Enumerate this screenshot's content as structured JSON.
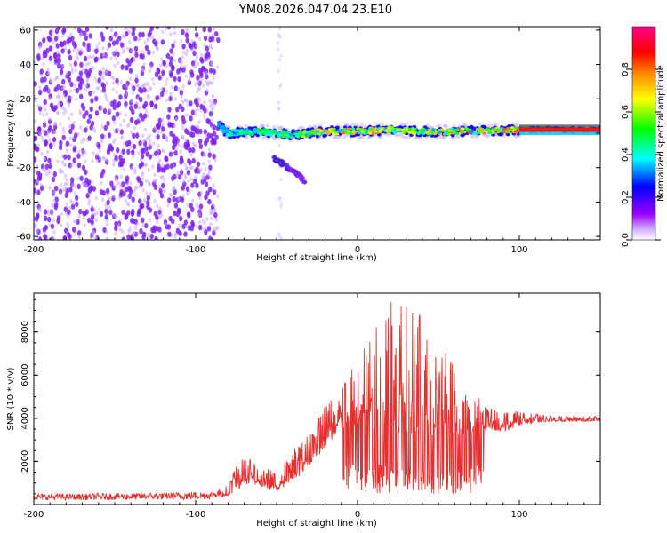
{
  "title": "YM08.2026.047.04.23.E10",
  "colors": {
    "snr_line": "#e53030",
    "spec_floor": "#7722ee"
  },
  "chart_data": [
    {
      "type": "heatmap",
      "name": "spectrogram",
      "xlabel": "Height of straight line (km)",
      "ylabel": "Frequency (Hz)",
      "xlim": [
        -200,
        150
      ],
      "ylim": [
        -62,
        62
      ],
      "xticks": [
        -200,
        -100,
        0,
        100
      ],
      "yticks": [
        60,
        40,
        20,
        0,
        -20,
        -40,
        -60
      ],
      "colorbar": {
        "label": "Normalized spectral amplitude",
        "range": [
          0,
          1
        ],
        "ticks": [
          0.0,
          0.2,
          0.4,
          0.6,
          0.8
        ],
        "tick_labels": [
          "0.0",
          "0.2",
          "0.4",
          "0.6",
          "0.8"
        ],
        "colormap": [
          "#ffffff",
          "#9b00ff",
          "#0000ff",
          "#00ffff",
          "#00ff00",
          "#ffff00",
          "#ff8800",
          "#ff0000",
          "#ff0088"
        ]
      },
      "features": {
        "noise_region_km": [
          -200,
          -86
        ],
        "noise_amplitude_max": 0.25,
        "signal_band": [
          {
            "x": -86,
            "f": 5,
            "a": 0.3
          },
          {
            "x": -80,
            "f": 0,
            "a": 0.45
          },
          {
            "x": -60,
            "f": 1,
            "a": 0.55
          },
          {
            "x": -40,
            "f": -1,
            "a": 0.6
          },
          {
            "x": -20,
            "f": 1,
            "a": 0.8
          },
          {
            "x": 0,
            "f": 1,
            "a": 0.85
          },
          {
            "x": 20,
            "f": 2,
            "a": 0.75
          },
          {
            "x": 40,
            "f": 1,
            "a": 0.7
          },
          {
            "x": 60,
            "f": 1,
            "a": 0.8
          },
          {
            "x": 100,
            "f": 2,
            "a": 0.95
          },
          {
            "x": 150,
            "f": 2,
            "a": 1.0
          }
        ],
        "secondary_branch": [
          {
            "x": -52,
            "f": -14
          },
          {
            "x": -40,
            "f": -22
          },
          {
            "x": -32,
            "f": -28
          }
        ]
      }
    },
    {
      "type": "line",
      "name": "snr",
      "xlabel": "Height of straight line (km)",
      "ylabel": "SNR (10 * v/v)",
      "xlim": [
        -200,
        150
      ],
      "ylim": [
        0,
        9800
      ],
      "xticks": [
        -200,
        -100,
        0,
        100
      ],
      "yticks": [
        2000,
        4000,
        6000,
        8000
      ],
      "series": [
        {
          "name": "SNR",
          "x": [
            -200,
            -180,
            -160,
            -140,
            -120,
            -100,
            -90,
            -80,
            -75,
            -70,
            -65,
            -60,
            -55,
            -50,
            -45,
            -40,
            -35,
            -30,
            -25,
            -20,
            -15,
            -10,
            -5,
            0,
            5,
            10,
            15,
            20,
            25,
            30,
            35,
            40,
            45,
            50,
            55,
            60,
            65,
            70,
            75,
            80,
            85,
            90,
            95,
            100,
            110,
            120,
            130,
            140,
            150
          ],
          "baseline": [
            200,
            200,
            210,
            210,
            220,
            230,
            260,
            400,
            600,
            900,
            1000,
            800,
            700,
            600,
            800,
            1000,
            1400,
            1800,
            2200,
            2600,
            3000,
            3400,
            3600,
            3700,
            3600,
            3500,
            3400,
            3300,
            3300,
            3200,
            3200,
            3100,
            3100,
            3000,
            3000,
            3100,
            3200,
            3300,
            3400,
            3400,
            3400,
            3400,
            3500,
            3700,
            3800,
            3850,
            3850,
            3850,
            3850
          ],
          "peak": [
            500,
            500,
            520,
            530,
            560,
            600,
            600,
            900,
            1900,
            2300,
            2000,
            1500,
            1800,
            1300,
            2000,
            2600,
            2800,
            3300,
            4000,
            4600,
            5200,
            5400,
            6300,
            6600,
            7600,
            8200,
            9400,
            9800,
            9500,
            9500,
            9200,
            8600,
            7800,
            7500,
            7000,
            6500,
            5500,
            5200,
            5000,
            4600,
            4400,
            4300,
            4400,
            4300,
            4200,
            4100,
            4100,
            4100,
            4100
          ]
        }
      ]
    }
  ]
}
